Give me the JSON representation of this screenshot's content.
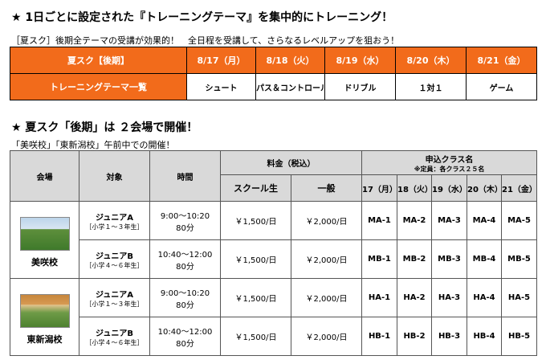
{
  "heading1": "★ 1日ごとに設定された『トレーニングテーマ』を集中的にトレーニング！",
  "subtitle1": "［夏スク］後期全テーマの受講が効果的！　全日程を受講して、さらなるレベルアップを狙おう！",
  "theme_table": {
    "row1_label": "夏スク【後期】",
    "row2_label": "トレーニングテーマ一覧",
    "dates": [
      "8/17（月）",
      "8/18（火）",
      "8/19（水）",
      "8/20（木）",
      "8/21（金）"
    ],
    "themes": [
      "シュート",
      "パス＆コントロール",
      "ドリブル",
      "１対１",
      "ゲーム"
    ]
  },
  "heading2": "★ 夏スク「後期」は ２会場で開催！",
  "subtitle2": "「美咲校」「東新潟校」午前中での開催！",
  "schedule": {
    "headers": {
      "venue": "会場",
      "target": "対象",
      "time": "時間",
      "fee": "料金（税込）",
      "fee_school": "スクール生",
      "fee_general": "一般",
      "class_title": "申込クラス名",
      "class_note": "※定員：各クラス２５名",
      "days": [
        "17（月）",
        "18（火）",
        "19（水）",
        "20（木）",
        "21（金）"
      ]
    },
    "venues": [
      {
        "name": "美咲校",
        "photo": "turf-field-photo",
        "rows": [
          {
            "target": "ジュニアA",
            "grade": "［小学１～３年生］",
            "time": "9:00～10:20",
            "duration": "80分",
            "fee_school": "￥1,500/日",
            "fee_general": "￥2,000/日",
            "classes": [
              "MA-1",
              "MA-2",
              "MA-3",
              "MA-4",
              "MA-5"
            ]
          },
          {
            "target": "ジュニアB",
            "grade": "［小学４～６年生］",
            "time": "10:40～12:00",
            "duration": "80分",
            "fee_school": "￥1,500/日",
            "fee_general": "￥2,000/日",
            "classes": [
              "MB-1",
              "MB-2",
              "MB-3",
              "MB-4",
              "MB-5"
            ]
          }
        ]
      },
      {
        "name": "東新潟校",
        "photo": "covered-field-photo",
        "rows": [
          {
            "target": "ジュニアA",
            "grade": "［小学１～３年生］",
            "time": "9:00～10:20",
            "duration": "80分",
            "fee_school": "￥1,500/日",
            "fee_general": "￥2,000/日",
            "classes": [
              "HA-1",
              "HA-2",
              "HA-3",
              "HA-4",
              "HA-5"
            ]
          },
          {
            "target": "ジュニアB",
            "grade": "［小学４～６年生］",
            "time": "10:40～12:00",
            "duration": "80分",
            "fee_school": "￥1,500/日",
            "fee_general": "￥2,000/日",
            "classes": [
              "HB-1",
              "HB-2",
              "HB-3",
              "HB-4",
              "HB-5"
            ]
          }
        ]
      }
    ]
  },
  "colors": {
    "accent": "#f26b1b",
    "header_gray": "#d9d9d9"
  }
}
